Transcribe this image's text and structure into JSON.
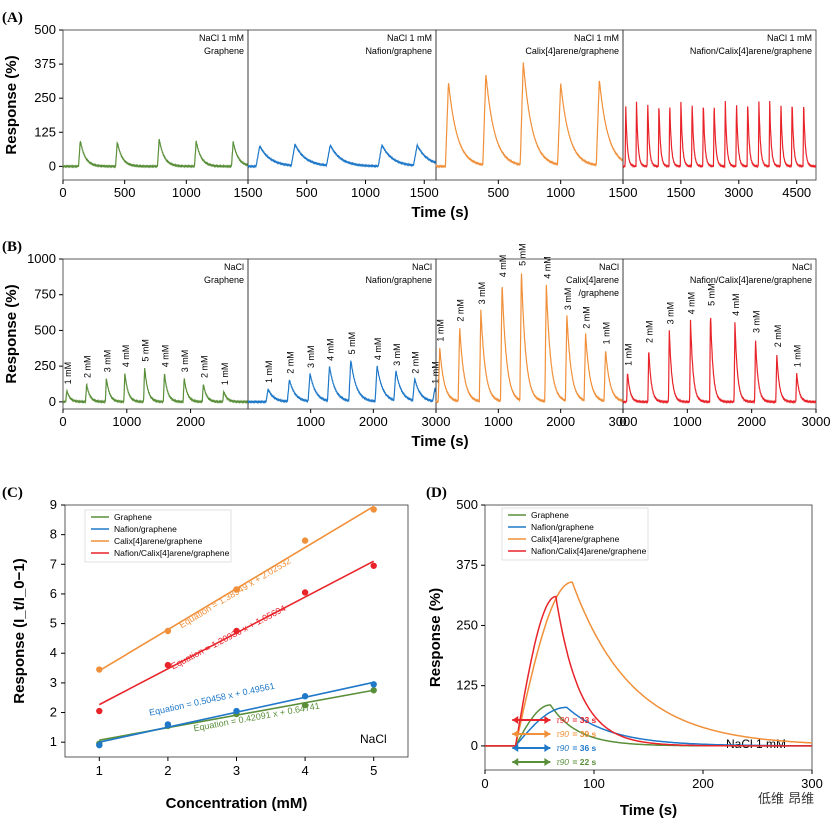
{
  "colors": {
    "graphene": "#5a8f3a",
    "nafion": "#1f78c8",
    "calix": "#f0903a",
    "nafcalix": "#e8242a"
  },
  "panels": {
    "A": "(A)",
    "B": "(B)",
    "C": "(C)",
    "D": "(D)"
  },
  "chart_data": [
    {
      "id": "A",
      "type": "line",
      "ylabel": "Response (%)",
      "xlabel": "Time (s)",
      "ylim": [
        -50,
        500
      ],
      "yticks": [
        "0",
        "125",
        "250",
        "375",
        "500"
      ],
      "subplots": [
        {
          "title": "NaCl 1 mM",
          "subtitle": "Graphene",
          "series": "graphene",
          "xlim": [
            0,
            1500
          ],
          "xticks": [
            0,
            500,
            1000,
            1500
          ],
          "xtick_labels": [
            "0",
            "500",
            "1000",
            "1500"
          ],
          "peaks": [
            [
              140,
              95
            ],
            [
              440,
              90
            ],
            [
              780,
              100
            ],
            [
              1080,
              92
            ],
            [
              1380,
              90
            ]
          ],
          "decay": 40
        },
        {
          "title": "NaCl 1 mM",
          "subtitle": "Nafion/graphene",
          "series": "nafion",
          "xlim": [
            0,
            1600
          ],
          "xticks": [
            500,
            1000,
            1500
          ],
          "xtick_labels": [
            "500",
            "1000",
            "1500"
          ],
          "peaks": [
            [
              100,
              75
            ],
            [
              400,
              78
            ],
            [
              700,
              75
            ],
            [
              1140,
              78
            ],
            [
              1440,
              75
            ]
          ],
          "decay": 90
        },
        {
          "title": "NaCl 1 mM",
          "subtitle": "Calix[4]arene/graphene",
          "series": "calix",
          "xlim": [
            0,
            1500
          ],
          "xticks": [
            500,
            1000,
            1500
          ],
          "xtick_labels": [
            "500",
            "1000",
            "1500"
          ],
          "peaks": [
            [
              100,
              310
            ],
            [
              400,
              335
            ],
            [
              700,
              380
            ],
            [
              1000,
              300
            ],
            [
              1310,
              315
            ]
          ],
          "decay": 70
        },
        {
          "title": "NaCl 1 mM",
          "subtitle": "Nafion/Calix[4]arene/graphene",
          "series": "nafcalix",
          "xlim": [
            0,
            5000
          ],
          "xticks": [
            1500,
            3000,
            4500
          ],
          "xtick_labels": [
            "1500",
            "3000",
            "4500"
          ],
          "peaks": [
            [
              70,
              230
            ],
            [
              350,
              235
            ],
            [
              640,
              240
            ],
            [
              930,
              235
            ],
            [
              1210,
              240
            ],
            [
              1500,
              238
            ],
            [
              1790,
              240
            ],
            [
              2080,
              242
            ],
            [
              2360,
              240
            ],
            [
              2650,
              238
            ],
            [
              2940,
              240
            ],
            [
              3230,
              242
            ],
            [
              3520,
              245
            ],
            [
              3800,
              240
            ],
            [
              4090,
              238
            ],
            [
              4380,
              245
            ],
            [
              4680,
              240
            ]
          ],
          "decay": 40
        }
      ]
    },
    {
      "id": "B",
      "type": "line",
      "ylabel": "Response (%)",
      "xlabel": "Time (s)",
      "ylim": [
        -50,
        1000
      ],
      "yticks": [
        "0",
        "250",
        "500",
        "750",
        "1000"
      ],
      "subplots": [
        {
          "title": "NaCl",
          "subtitle": "Graphene",
          "series": "graphene",
          "xlim": [
            0,
            2900
          ],
          "xticks": [
            0,
            1000,
            2000
          ],
          "xtick_labels": [
            "0",
            "1000",
            "2000"
          ],
          "peaks": [
            [
              60,
              80
            ],
            [
              370,
              125
            ],
            [
              680,
              165
            ],
            [
              970,
              200
            ],
            [
              1280,
              240
            ],
            [
              1590,
              200
            ],
            [
              1900,
              165
            ],
            [
              2200,
              125
            ],
            [
              2520,
              75
            ]
          ],
          "labels": [
            "1 mM",
            "2 mM",
            "3 mM",
            "4 mM",
            "5 mM",
            "4 mM",
            "3 mM",
            "2 mM",
            "1 mM"
          ],
          "decay": 50
        },
        {
          "title": "NaCl",
          "subtitle": "Nafion/graphene",
          "series": "nafion",
          "xlim": [
            0,
            3000
          ],
          "xticks": [
            1000,
            2000,
            3000
          ],
          "xtick_labels": [
            "1000",
            "2000",
            "3000"
          ],
          "peaks": [
            [
              320,
              90
            ],
            [
              660,
              155
            ],
            [
              990,
              195
            ],
            [
              1300,
              245
            ],
            [
              1640,
              290
            ],
            [
              2060,
              250
            ],
            [
              2360,
              210
            ],
            [
              2660,
              155
            ],
            [
              2980,
              85
            ]
          ],
          "labels": [
            "1 mM",
            "2 mM",
            "3 mM",
            "4 mM",
            "5 mM",
            "4 mM",
            "3 mM",
            "2 mM",
            "1 mM"
          ],
          "decay": 90
        },
        {
          "title": "NaCl",
          "subtitle": "Calix[4]arene",
          "subtitle2": "/graphene",
          "series": "calix",
          "xlim": [
            0,
            3000
          ],
          "xticks": [
            1000,
            2000,
            3000
          ],
          "xtick_labels": [
            "1000",
            "2000",
            "3000"
          ],
          "peaks": [
            [
              60,
              380
            ],
            [
              380,
              520
            ],
            [
              720,
              640
            ],
            [
              1060,
              830
            ],
            [
              1370,
              910
            ],
            [
              1770,
              820
            ],
            [
              2100,
              600
            ],
            [
              2400,
              470
            ],
            [
              2720,
              360
            ]
          ],
          "labels": [
            "1 mM",
            "2 mM",
            "3 mM",
            "4 mM",
            "5 mM",
            "4 mM",
            "3 mM",
            "2 mM",
            "1 mM"
          ],
          "decay": 70
        },
        {
          "title": "NaCl",
          "subtitle": "Nafion/Calix[4]arene/graphene",
          "series": "nafcalix",
          "xlim": [
            0,
            3000
          ],
          "xticks": [
            0,
            1000,
            2000,
            3000
          ],
          "xtick_labels": [
            "0",
            "1000",
            "2000",
            "3000"
          ],
          "peaks": [
            [
              70,
              210
            ],
            [
              400,
              370
            ],
            [
              720,
              500
            ],
            [
              1050,
              570
            ],
            [
              1360,
              630
            ],
            [
              1740,
              560
            ],
            [
              2060,
              440
            ],
            [
              2390,
              340
            ],
            [
              2700,
              200
            ]
          ],
          "labels": [
            "1 mM",
            "2 mM",
            "3 mM",
            "4 mM",
            "5 mM",
            "4 mM",
            "3 mM",
            "2 mM",
            "1 mM"
          ],
          "decay": 40
        }
      ]
    },
    {
      "id": "C",
      "type": "scatter",
      "xlabel": "Concentration (mM)",
      "ylabel": "Response (I_t/I_0−1)",
      "xlim": [
        0.5,
        5.5
      ],
      "ylim": [
        0.5,
        9
      ],
      "xticks": [
        1,
        2,
        3,
        4,
        5
      ],
      "yticks": [
        1,
        2,
        3,
        4,
        5,
        6,
        7,
        8,
        9
      ],
      "annotation": "NaCl",
      "legend": [
        "Graphene",
        "Nafion/graphene",
        "Calix[4]arene/graphene",
        "Nafion/Calix[4]arene/graphene"
      ],
      "series": [
        {
          "key": "graphene",
          "x": [
            1,
            2,
            3,
            4,
            5
          ],
          "y": [
            0.95,
            1.55,
            1.95,
            2.25,
            2.75
          ],
          "slope": 0.42091,
          "intercept": 0.64741,
          "equation": "Equation = 0.42091 x + 0.64741"
        },
        {
          "key": "nafion",
          "x": [
            1,
            2,
            3,
            4,
            5
          ],
          "y": [
            0.9,
            1.6,
            2.05,
            2.55,
            2.95
          ],
          "slope": 0.50458,
          "intercept": 0.49561,
          "equation": "Equation = 0.50458 x + 0.49561"
        },
        {
          "key": "calix",
          "x": [
            1,
            2,
            3,
            4,
            5
          ],
          "y": [
            3.45,
            4.75,
            6.15,
            7.8,
            8.85
          ],
          "slope": 1.38549,
          "intercept": 2.02532,
          "equation": "Equation = 1.38549 x + 2.02532"
        },
        {
          "key": "nafcalix",
          "x": [
            1,
            2,
            3,
            4,
            5
          ],
          "y": [
            2.05,
            3.6,
            4.75,
            6.05,
            6.95
          ],
          "slope": 1.20936,
          "intercept": 1.05694,
          "equation": "Equation = 1.20936 x + 1.05694"
        }
      ]
    },
    {
      "id": "D",
      "type": "line",
      "xlabel": "Time (s)",
      "ylabel": "Response (%)",
      "xlim": [
        0,
        300
      ],
      "ylim": [
        -50,
        500
      ],
      "xticks": [
        0,
        100,
        200,
        300
      ],
      "yticks": [
        0,
        125,
        250,
        375,
        500
      ],
      "annotation": "NaCl 1 mM",
      "legend": [
        "Graphene",
        "Nafion/graphene",
        "Calix[4]arene/graphene",
        "Nafion/Calix[4]arene/graphene"
      ],
      "series": [
        {
          "key": "graphene",
          "start": 28,
          "peak_t": 60,
          "peak": 85,
          "decay": 25
        },
        {
          "key": "nafion",
          "start": 28,
          "peak_t": 75,
          "peak": 80,
          "decay": 40
        },
        {
          "key": "calix",
          "start": 28,
          "peak_t": 80,
          "peak": 340,
          "decay": 55
        },
        {
          "key": "nafcalix",
          "start": 28,
          "peak_t": 65,
          "peak": 310,
          "decay": 22
        }
      ],
      "tau_label": "τ90",
      "taus": [
        {
          "key": "nafcalix",
          "value": "= 33 s"
        },
        {
          "key": "calix",
          "value": "= 39 s"
        },
        {
          "key": "nafion",
          "value": "= 36 s"
        },
        {
          "key": "graphene",
          "value": "= 22 s"
        }
      ]
    }
  ],
  "watermark": "低维 昂维"
}
